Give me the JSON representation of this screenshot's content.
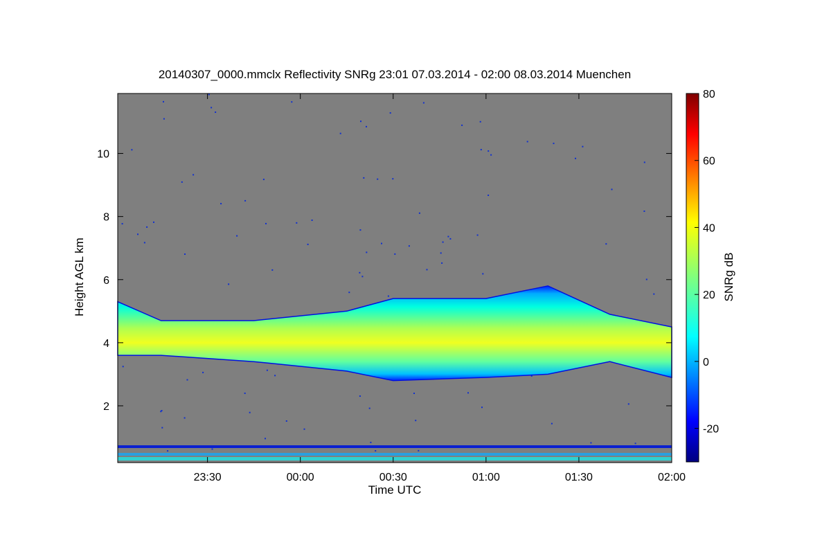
{
  "chart_data": {
    "type": "heatmap",
    "title": "20140307_0000.mmclx Reflectivity SNRg   23:01 07.03.2014 - 02:00 08.03.2014 Muenchen",
    "xlabel": "Time UTC",
    "ylabel": "Height AGL km",
    "xlim": [
      "23:01",
      "02:00"
    ],
    "x_ticks": [
      "23:30",
      "00:00",
      "00:30",
      "01:00",
      "01:30",
      "02:00"
    ],
    "ylim": [
      0.2,
      11.9
    ],
    "y_ticks": [
      2,
      4,
      6,
      8,
      10
    ],
    "colorbar": {
      "label": "SNRg dB",
      "range": [
        -30,
        80
      ],
      "ticks": [
        -20,
        0,
        20,
        40,
        60,
        80
      ],
      "colormap": "jet"
    },
    "background_color": "#7f7f7f",
    "cloud_layer": {
      "description_points": [
        {
          "time": "23:01",
          "base_km": 3.6,
          "top_km": 5.3
        },
        {
          "time": "23:15",
          "base_km": 3.6,
          "top_km": 4.7
        },
        {
          "time": "23:45",
          "base_km": 3.4,
          "top_km": 4.7
        },
        {
          "time": "00:15",
          "base_km": 3.1,
          "top_km": 5.0
        },
        {
          "time": "00:30",
          "base_km": 2.8,
          "top_km": 5.4
        },
        {
          "time": "01:00",
          "base_km": 2.9,
          "top_km": 5.4
        },
        {
          "time": "01:20",
          "base_km": 3.0,
          "top_km": 5.8
        },
        {
          "time": "01:40",
          "base_km": 3.4,
          "top_km": 4.9
        },
        {
          "time": "02:00",
          "base_km": 2.9,
          "top_km": 4.5
        }
      ],
      "core_snr_db": 40
    }
  }
}
